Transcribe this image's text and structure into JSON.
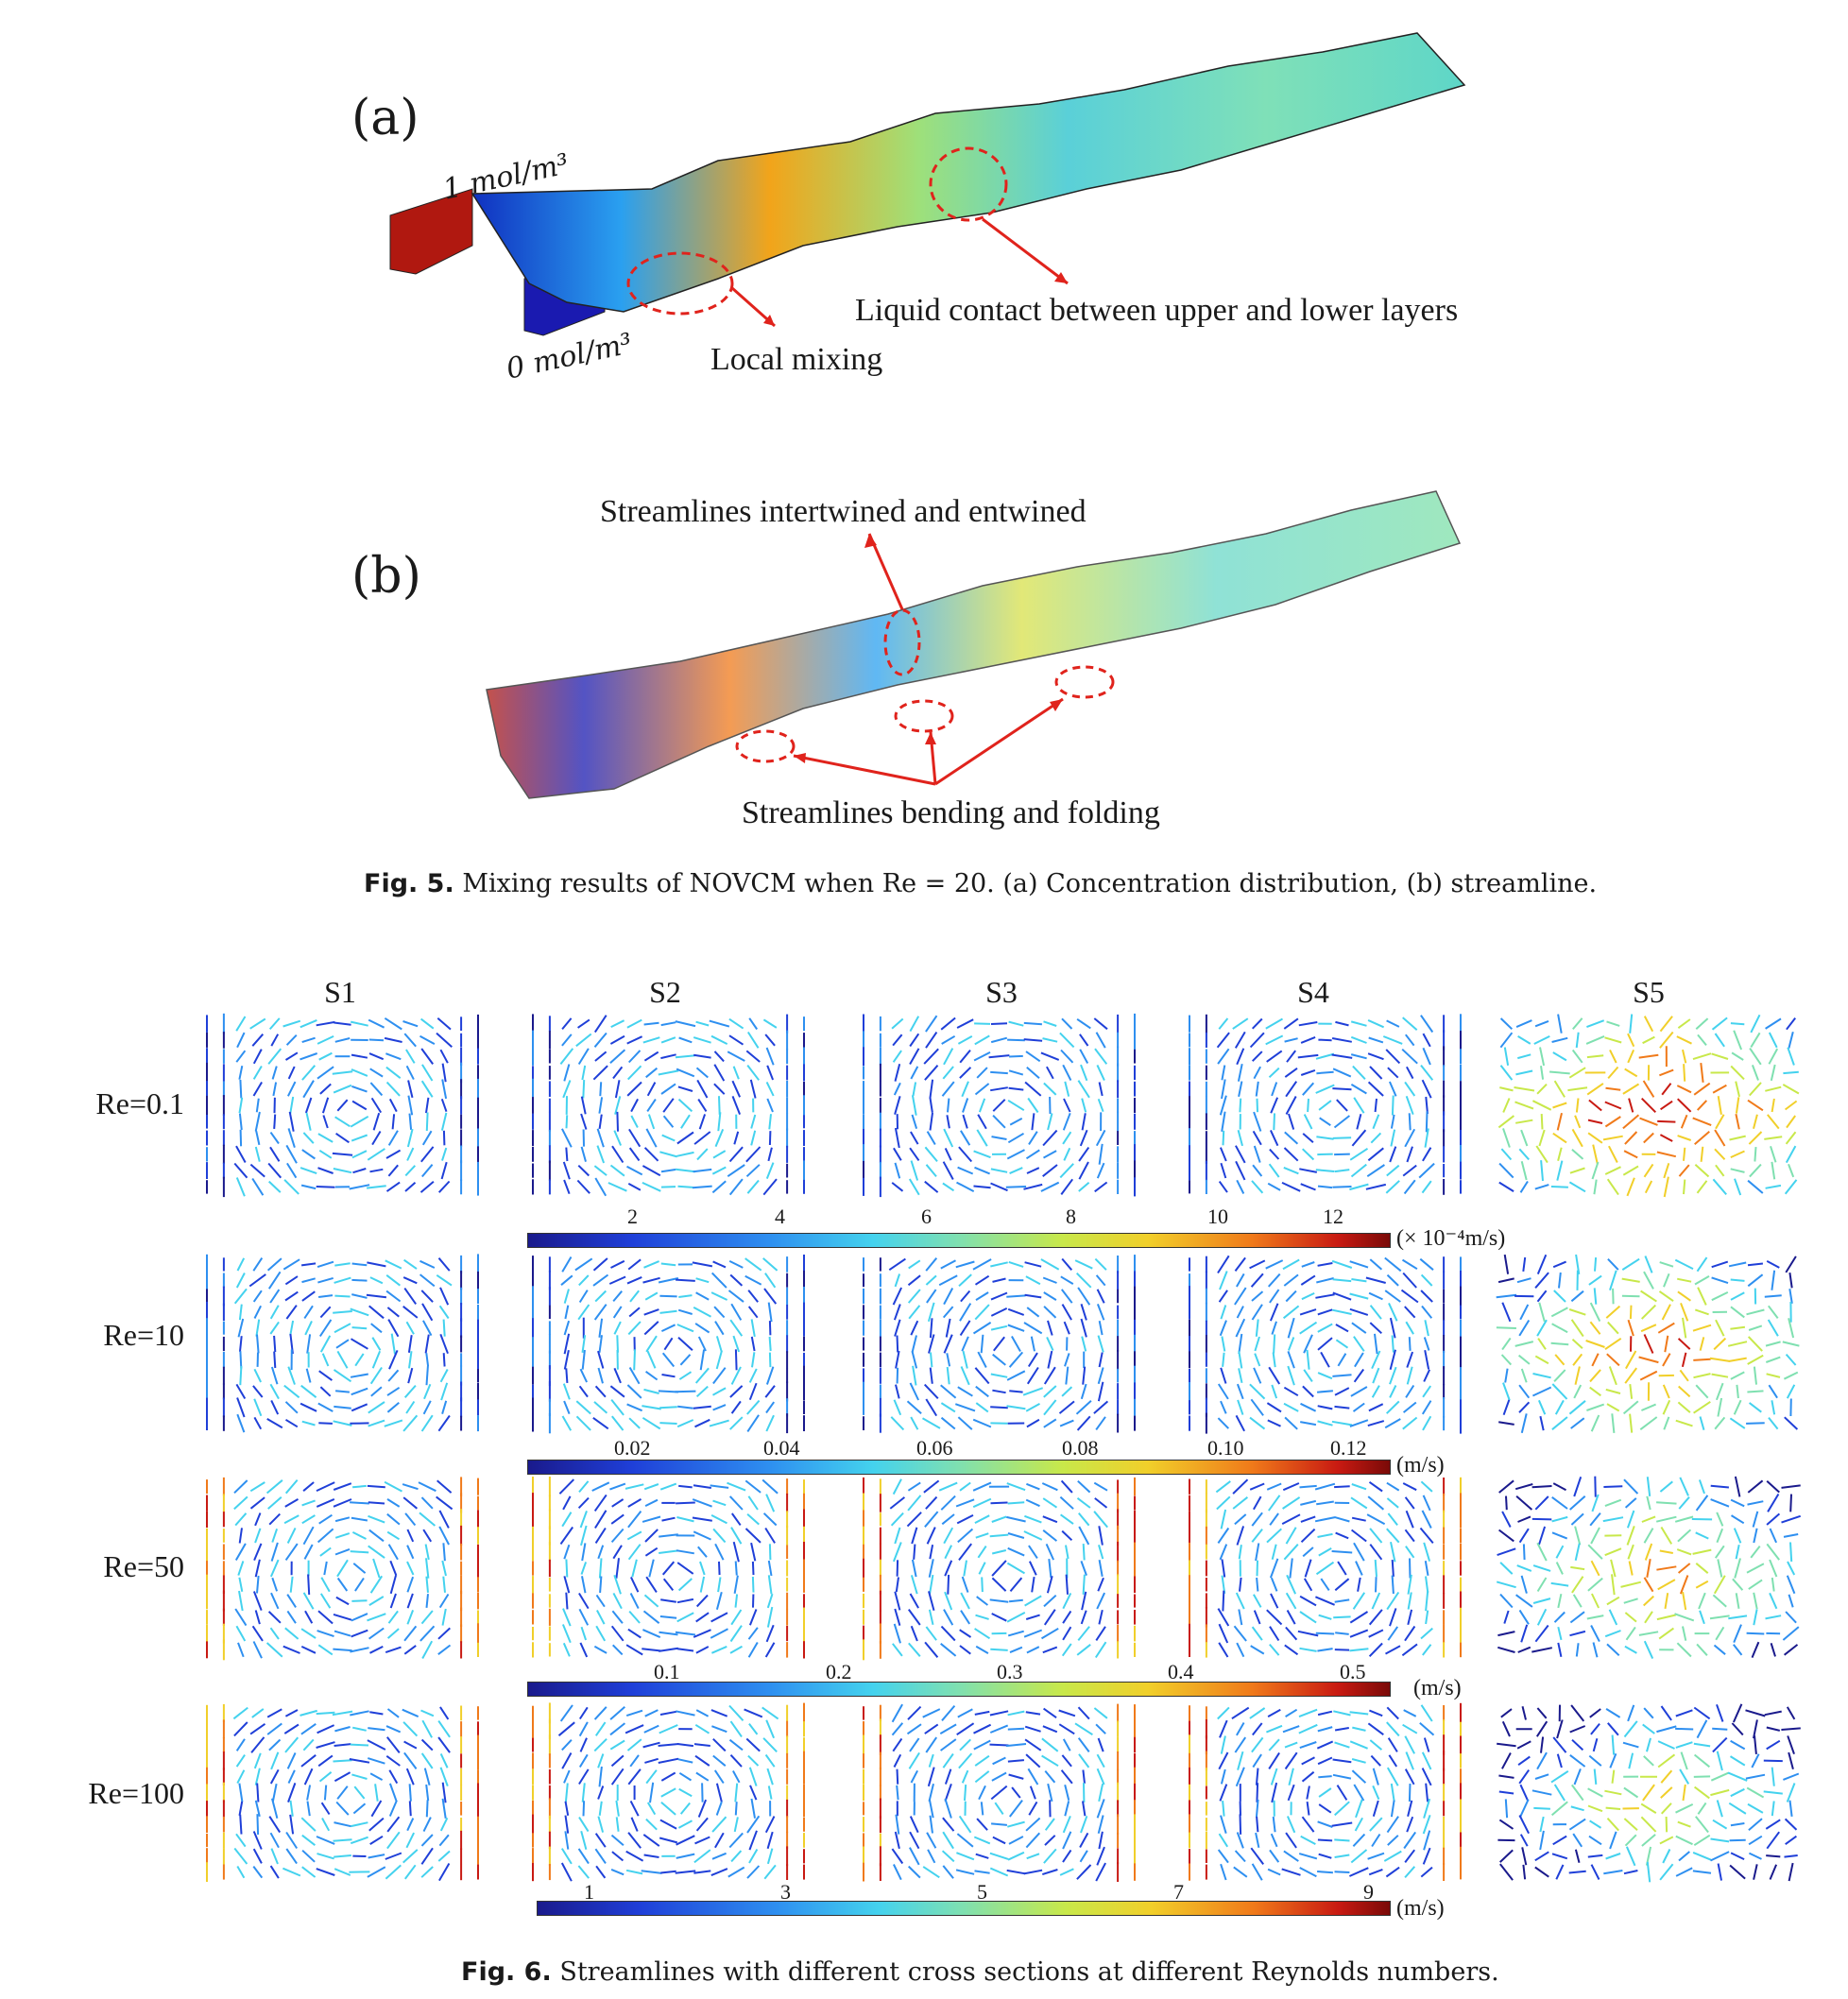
{
  "fig5": {
    "panel_a_label": "(a)",
    "panel_b_label": "(b)",
    "high_conc_label": "1 mol/m³",
    "low_conc_label": "0 mol/m³",
    "local_mixing": "Local mixing",
    "liquid_contact": "Liquid contact between upper and lower layers",
    "streamlines_intertwined": "Streamlines intertwined and entwined",
    "streamlines_bending": "Streamlines bending and folding",
    "caption_prefix": "Fig. 5.",
    "caption_text": "Mixing results of NOVCM when Re = 20. (a) Concentration distribution, (b) streamline."
  },
  "fig6": {
    "columns": [
      "S1",
      "S2",
      "S3",
      "S4",
      "S5"
    ],
    "rows": [
      "Re=0.1",
      "Re=10",
      "Re=50",
      "Re=100"
    ],
    "colorbars": [
      {
        "ticks": [
          "2",
          "4",
          "6",
          "8",
          "10",
          "12"
        ],
        "unit": "(× 10⁻⁴m/s)"
      },
      {
        "ticks": [
          "0.02",
          "0.04",
          "0.06",
          "0.08",
          "0.10",
          "0.12"
        ],
        "unit": "(m/s)"
      },
      {
        "ticks": [
          "0.1",
          "0.2",
          "0.3",
          "0.4",
          "0.5"
        ],
        "unit": "(m/s)"
      },
      {
        "ticks": [
          "1",
          "3",
          "5",
          "7",
          "9"
        ],
        "unit": "(m/s)"
      }
    ],
    "caption_prefix": "Fig. 6.",
    "caption_text": "Streamlines with different cross sections at different Reynolds numbers."
  },
  "colors": {
    "red_arrow": "#e0231c",
    "dashed_circle": "#e0231c",
    "high_conc": "#b01810",
    "low_conc": "#1a1ab0"
  }
}
